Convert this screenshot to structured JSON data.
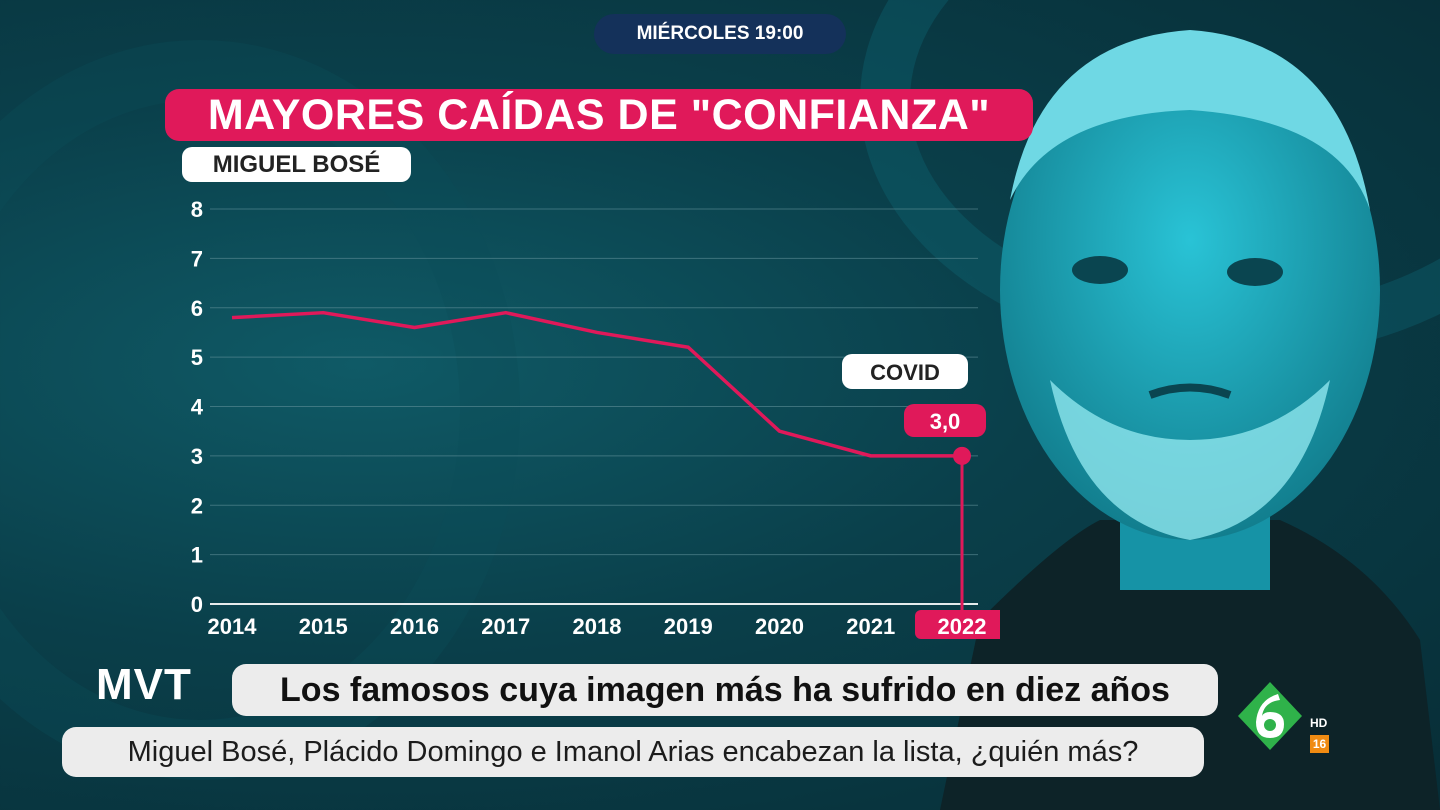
{
  "program": {
    "day_time": "MIÉRCOLES 19:00",
    "logo": "MVT"
  },
  "title": "MAYORES CAÍDAS DE \"CONFIANZA\"",
  "subject": "MIGUEL BOSÉ",
  "headline": "Los famosos cuya imagen más ha sufrido en diez años",
  "ticker": "Miguel Bosé, Plácido Domingo e Imanol Arias encabezan la lista, ¿quién más?",
  "channel": {
    "hd": "HD",
    "age_rating": "16"
  },
  "colors": {
    "accent": "#e0195a",
    "background": "#0a3f4a",
    "grid": "#5f8f98",
    "text": "#ffffff"
  },
  "chart_data": {
    "type": "line",
    "categories": [
      "2014",
      "2015",
      "2016",
      "2017",
      "2018",
      "2019",
      "2020",
      "2021",
      "2022"
    ],
    "values": [
      5.8,
      5.9,
      5.6,
      5.9,
      5.5,
      5.2,
      3.5,
      3.0,
      3.0
    ],
    "ylim": [
      0,
      8
    ],
    "yticks": [
      "0",
      "1",
      "2",
      "3",
      "4",
      "5",
      "6",
      "7",
      "8"
    ],
    "grid": true,
    "highlight_category": "2022",
    "annotations": [
      {
        "x": "2022",
        "label": "COVID"
      },
      {
        "x": "2022",
        "label": "3,0"
      }
    ]
  }
}
